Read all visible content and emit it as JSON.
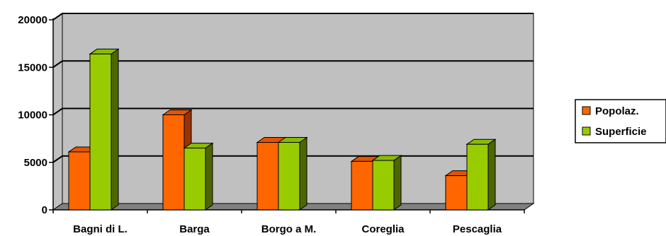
{
  "colors": {
    "popolaz_front": "#ff6600",
    "popolaz_top": "#e05500",
    "popolaz_side": "#993300",
    "superficie_front": "#99cc00",
    "superficie_top": "#88bb00",
    "superficie_side": "#4d6600",
    "wall": "#c0c0c0",
    "floor": "#808080",
    "grid": "#000000"
  },
  "chart_data": {
    "type": "bar",
    "title": "",
    "xlabel": "",
    "ylabel": "",
    "ylim": [
      0,
      20000
    ],
    "yticks": [
      "0",
      "5000",
      "10000",
      "15000",
      "20000"
    ],
    "categories": [
      "Bagni di L.",
      "Barga",
      "Borgo a M.",
      "Coreglia",
      "Pescaglia"
    ],
    "series": [
      {
        "name": "Popolaz.",
        "values": [
          6100,
          10000,
          7100,
          5100,
          3600
        ]
      },
      {
        "name": "Superficie",
        "values": [
          16400,
          6500,
          7100,
          5200,
          6900
        ]
      }
    ],
    "legend": "right",
    "grid": true
  }
}
